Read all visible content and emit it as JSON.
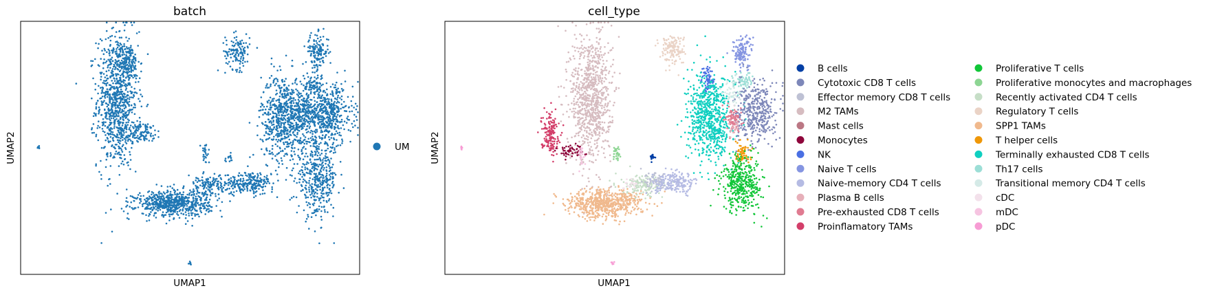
{
  "chart_data": [
    {
      "type": "scatter",
      "title": "batch",
      "xlabel": "UMAP1",
      "ylabel": "UMAP2",
      "legend": [
        {
          "name": "UM",
          "color": "#1f77b4"
        }
      ],
      "legend_placement": "right",
      "grid": false,
      "clusters": [
        {
          "name": "UM",
          "color": "#1f77b4",
          "x": 0.285,
          "y": 0.69,
          "sx": 0.03,
          "sy": 0.135,
          "n": 900
        },
        {
          "name": "UM",
          "color": "#1f77b4",
          "x": 0.315,
          "y": 0.84,
          "sx": 0.018,
          "sy": 0.035,
          "n": 130
        },
        {
          "name": "UM",
          "color": "#1f77b4",
          "x": 0.35,
          "y": 0.56,
          "sx": 0.035,
          "sy": 0.02,
          "n": 120
        },
        {
          "name": "UM",
          "color": "#1f77b4",
          "x": 0.64,
          "y": 0.88,
          "sx": 0.018,
          "sy": 0.035,
          "n": 130
        },
        {
          "name": "UM",
          "color": "#1f77b4",
          "x": 0.875,
          "y": 0.88,
          "sx": 0.017,
          "sy": 0.035,
          "n": 140
        },
        {
          "name": "UM",
          "color": "#1f77b4",
          "x": 0.865,
          "y": 0.75,
          "sx": 0.015,
          "sy": 0.02,
          "n": 70
        },
        {
          "name": "UM",
          "color": "#1f77b4",
          "x": 0.78,
          "y": 0.62,
          "sx": 0.035,
          "sy": 0.085,
          "n": 700
        },
        {
          "name": "UM",
          "color": "#1f77b4",
          "x": 0.91,
          "y": 0.63,
          "sx": 0.035,
          "sy": 0.06,
          "n": 450
        },
        {
          "name": "UM",
          "color": "#1f77b4",
          "x": 0.845,
          "y": 0.64,
          "sx": 0.028,
          "sy": 0.035,
          "n": 160
        },
        {
          "name": "UM",
          "color": "#1f77b4",
          "x": 0.875,
          "y": 0.38,
          "sx": 0.03,
          "sy": 0.075,
          "n": 420
        },
        {
          "name": "UM",
          "color": "#1f77b4",
          "x": 0.45,
          "y": 0.28,
          "sx": 0.055,
          "sy": 0.025,
          "n": 650
        },
        {
          "name": "UM",
          "color": "#1f77b4",
          "x": 0.56,
          "y": 0.35,
          "sx": 0.035,
          "sy": 0.02,
          "n": 160
        },
        {
          "name": "UM",
          "color": "#1f77b4",
          "x": 0.675,
          "y": 0.36,
          "sx": 0.035,
          "sy": 0.022,
          "n": 220
        },
        {
          "name": "UM",
          "color": "#1f77b4",
          "x": 0.545,
          "y": 0.48,
          "sx": 0.006,
          "sy": 0.018,
          "n": 25
        },
        {
          "name": "UM",
          "color": "#1f77b4",
          "x": 0.615,
          "y": 0.46,
          "sx": 0.006,
          "sy": 0.008,
          "n": 15
        },
        {
          "name": "UM",
          "color": "#1f77b4",
          "x": 0.053,
          "y": 0.5,
          "sx": 0.002,
          "sy": 0.003,
          "n": 6
        },
        {
          "name": "UM",
          "color": "#1f77b4",
          "x": 0.5,
          "y": 0.045,
          "sx": 0.003,
          "sy": 0.004,
          "n": 8
        }
      ]
    },
    {
      "type": "scatter",
      "title": "cell_type",
      "xlabel": "UMAP1",
      "ylabel": "UMAP2",
      "legend_placement": "right",
      "grid": false,
      "legend": [
        {
          "name": "B cells",
          "color": "#023fa5"
        },
        {
          "name": "Cytotoxic CD8 T cells",
          "color": "#7d87b9"
        },
        {
          "name": "Effector memory CD8 T cells",
          "color": "#bec1d4"
        },
        {
          "name": "M2 TAMs",
          "color": "#d6bcc0"
        },
        {
          "name": "Mast cells",
          "color": "#bb7784"
        },
        {
          "name": "Monocytes",
          "color": "#8e063b"
        },
        {
          "name": "NK",
          "color": "#4a6fe3"
        },
        {
          "name": "Naive T cells",
          "color": "#8595e1"
        },
        {
          "name": "Naive-memory CD4 T cells",
          "color": "#b5bbe3"
        },
        {
          "name": "Plasma B cells",
          "color": "#e6afb9"
        },
        {
          "name": "Pre-exhausted CD8 T cells",
          "color": "#e07b91"
        },
        {
          "name": "Proinflamatory TAMs",
          "color": "#d33f6a"
        },
        {
          "name": "Proliferative T cells",
          "color": "#11c638"
        },
        {
          "name": "Proliferative monocytes and macrophages",
          "color": "#8dd593"
        },
        {
          "name": "Recently activated CD4 T cells",
          "color": "#c6dec7"
        },
        {
          "name": "Regulatory T cells",
          "color": "#ead3c6"
        },
        {
          "name": "SPP1 TAMs",
          "color": "#f0b98d"
        },
        {
          "name": "T helper cells",
          "color": "#ef9708"
        },
        {
          "name": "Terminally exhausted CD8 T cells",
          "color": "#0fcfc0"
        },
        {
          "name": "Th17 cells",
          "color": "#9cded6"
        },
        {
          "name": "Transitional memory CD4 T cells",
          "color": "#d5eae7"
        },
        {
          "name": "cDC",
          "color": "#f3e1eb"
        },
        {
          "name": "mDC",
          "color": "#f6c4e1"
        },
        {
          "name": "pDC",
          "color": "#f79cd4"
        }
      ],
      "clusters": [
        {
          "name": "M2 TAMs",
          "color": "#d6bcc0",
          "x": 0.43,
          "y": 0.7,
          "sx": 0.03,
          "sy": 0.13,
          "n": 900
        },
        {
          "name": "Proinflamatory TAMs",
          "color": "#d33f6a",
          "x": 0.31,
          "y": 0.56,
          "sx": 0.013,
          "sy": 0.04,
          "n": 160
        },
        {
          "name": "Monocytes",
          "color": "#8e063b",
          "x": 0.37,
          "y": 0.49,
          "sx": 0.02,
          "sy": 0.012,
          "n": 60
        },
        {
          "name": "mDC",
          "color": "#f6c4e1",
          "x": 0.4,
          "y": 0.47,
          "sx": 0.006,
          "sy": 0.02,
          "n": 25
        },
        {
          "name": "Regulatory T cells",
          "color": "#ead3c6",
          "x": 0.67,
          "y": 0.89,
          "sx": 0.018,
          "sy": 0.03,
          "n": 140
        },
        {
          "name": "Naive T cells",
          "color": "#8595e1",
          "x": 0.875,
          "y": 0.88,
          "sx": 0.015,
          "sy": 0.032,
          "n": 130
        },
        {
          "name": "NK",
          "color": "#4a6fe3",
          "x": 0.775,
          "y": 0.77,
          "sx": 0.01,
          "sy": 0.025,
          "n": 60
        },
        {
          "name": "Th17 cells",
          "color": "#9cded6",
          "x": 0.875,
          "y": 0.76,
          "sx": 0.015,
          "sy": 0.02,
          "n": 70
        },
        {
          "name": "Terminally exhausted CD8 T cells",
          "color": "#0fcfc0",
          "x": 0.78,
          "y": 0.62,
          "sx": 0.032,
          "sy": 0.085,
          "n": 700
        },
        {
          "name": "Cytotoxic CD8 T cells",
          "color": "#7d87b9",
          "x": 0.915,
          "y": 0.64,
          "sx": 0.03,
          "sy": 0.06,
          "n": 400
        },
        {
          "name": "Pre-exhausted CD8 T cells",
          "color": "#e07b91",
          "x": 0.85,
          "y": 0.62,
          "sx": 0.012,
          "sy": 0.025,
          "n": 80
        },
        {
          "name": "Transitional memory CD4 T cells",
          "color": "#d5eae7",
          "x": 0.845,
          "y": 0.71,
          "sx": 0.012,
          "sy": 0.025,
          "n": 50
        },
        {
          "name": "T helper cells",
          "color": "#ef9708",
          "x": 0.875,
          "y": 0.48,
          "sx": 0.012,
          "sy": 0.02,
          "n": 70
        },
        {
          "name": "Proliferative T cells",
          "color": "#11c638",
          "x": 0.875,
          "y": 0.36,
          "sx": 0.03,
          "sy": 0.055,
          "n": 400
        },
        {
          "name": "SPP1 TAMs",
          "color": "#f0b98d",
          "x": 0.47,
          "y": 0.28,
          "sx": 0.055,
          "sy": 0.028,
          "n": 650
        },
        {
          "name": "Recently activated CD4 T cells",
          "color": "#c6dec7",
          "x": 0.58,
          "y": 0.35,
          "sx": 0.03,
          "sy": 0.02,
          "n": 140
        },
        {
          "name": "Effector memory CD8 T cells",
          "color": "#bec1d4",
          "x": 0.62,
          "y": 0.37,
          "sx": 0.02,
          "sy": 0.015,
          "n": 60
        },
        {
          "name": "Naive-memory CD4 T cells",
          "color": "#b5bbe3",
          "x": 0.68,
          "y": 0.36,
          "sx": 0.03,
          "sy": 0.02,
          "n": 200
        },
        {
          "name": "Proliferative monocytes and macrophages",
          "color": "#8dd593",
          "x": 0.505,
          "y": 0.48,
          "sx": 0.006,
          "sy": 0.016,
          "n": 30
        },
        {
          "name": "B cells",
          "color": "#023fa5",
          "x": 0.61,
          "y": 0.465,
          "sx": 0.005,
          "sy": 0.007,
          "n": 15
        },
        {
          "name": "Plasma B cells",
          "color": "#e6afb9",
          "x": 0.85,
          "y": 0.58,
          "sx": 0.008,
          "sy": 0.02,
          "n": 25
        },
        {
          "name": "cDC",
          "color": "#f3e1eb",
          "x": 0.545,
          "y": 0.36,
          "sx": 0.015,
          "sy": 0.01,
          "n": 20
        },
        {
          "name": "pDC",
          "color": "#f79cd4",
          "x": 0.049,
          "y": 0.5,
          "sx": 0.002,
          "sy": 0.003,
          "n": 6
        },
        {
          "name": "pDC",
          "color": "#f79cd4",
          "x": 0.495,
          "y": 0.045,
          "sx": 0.003,
          "sy": 0.004,
          "n": 8
        }
      ]
    }
  ]
}
